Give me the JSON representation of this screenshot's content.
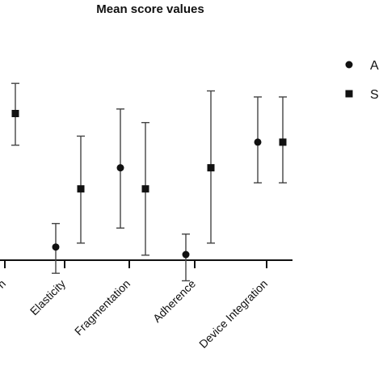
{
  "chart_data": {
    "type": "scatter",
    "title": "Mean score values",
    "categories": [
      "n",
      "Elasticity",
      "Fragmentation",
      "Adherence",
      "Device Integration"
    ],
    "legend_position": "top-right",
    "grid": false,
    "ylim": [
      0,
      1
    ],
    "series": [
      {
        "name": "A",
        "marker": "circle",
        "color": "#111111",
        "points": [
          {
            "category": "Elasticity",
            "mean": 0.242,
            "low": 0.155,
            "high": 0.32
          },
          {
            "category": "Fragmentation",
            "mean": 0.505,
            "low": 0.305,
            "high": 0.7
          },
          {
            "category": "Adherence",
            "mean": 0.217,
            "low": 0.13,
            "high": 0.285
          },
          {
            "category": "Device Integration",
            "mean": 0.59,
            "low": 0.455,
            "high": 0.74
          }
        ]
      },
      {
        "name": "S",
        "marker": "square",
        "color": "#111111",
        "points": [
          {
            "category": "n",
            "mean": 0.685,
            "low": 0.58,
            "high": 0.785
          },
          {
            "category": "Elasticity",
            "mean": 0.435,
            "low": 0.255,
            "high": 0.61
          },
          {
            "category": "Fragmentation",
            "mean": 0.435,
            "low": 0.215,
            "high": 0.655
          },
          {
            "category": "Adherence",
            "mean": 0.505,
            "low": 0.255,
            "high": 0.76
          },
          {
            "category": "Device Integration",
            "mean": 0.59,
            "low": 0.455,
            "high": 0.74
          }
        ]
      }
    ]
  }
}
